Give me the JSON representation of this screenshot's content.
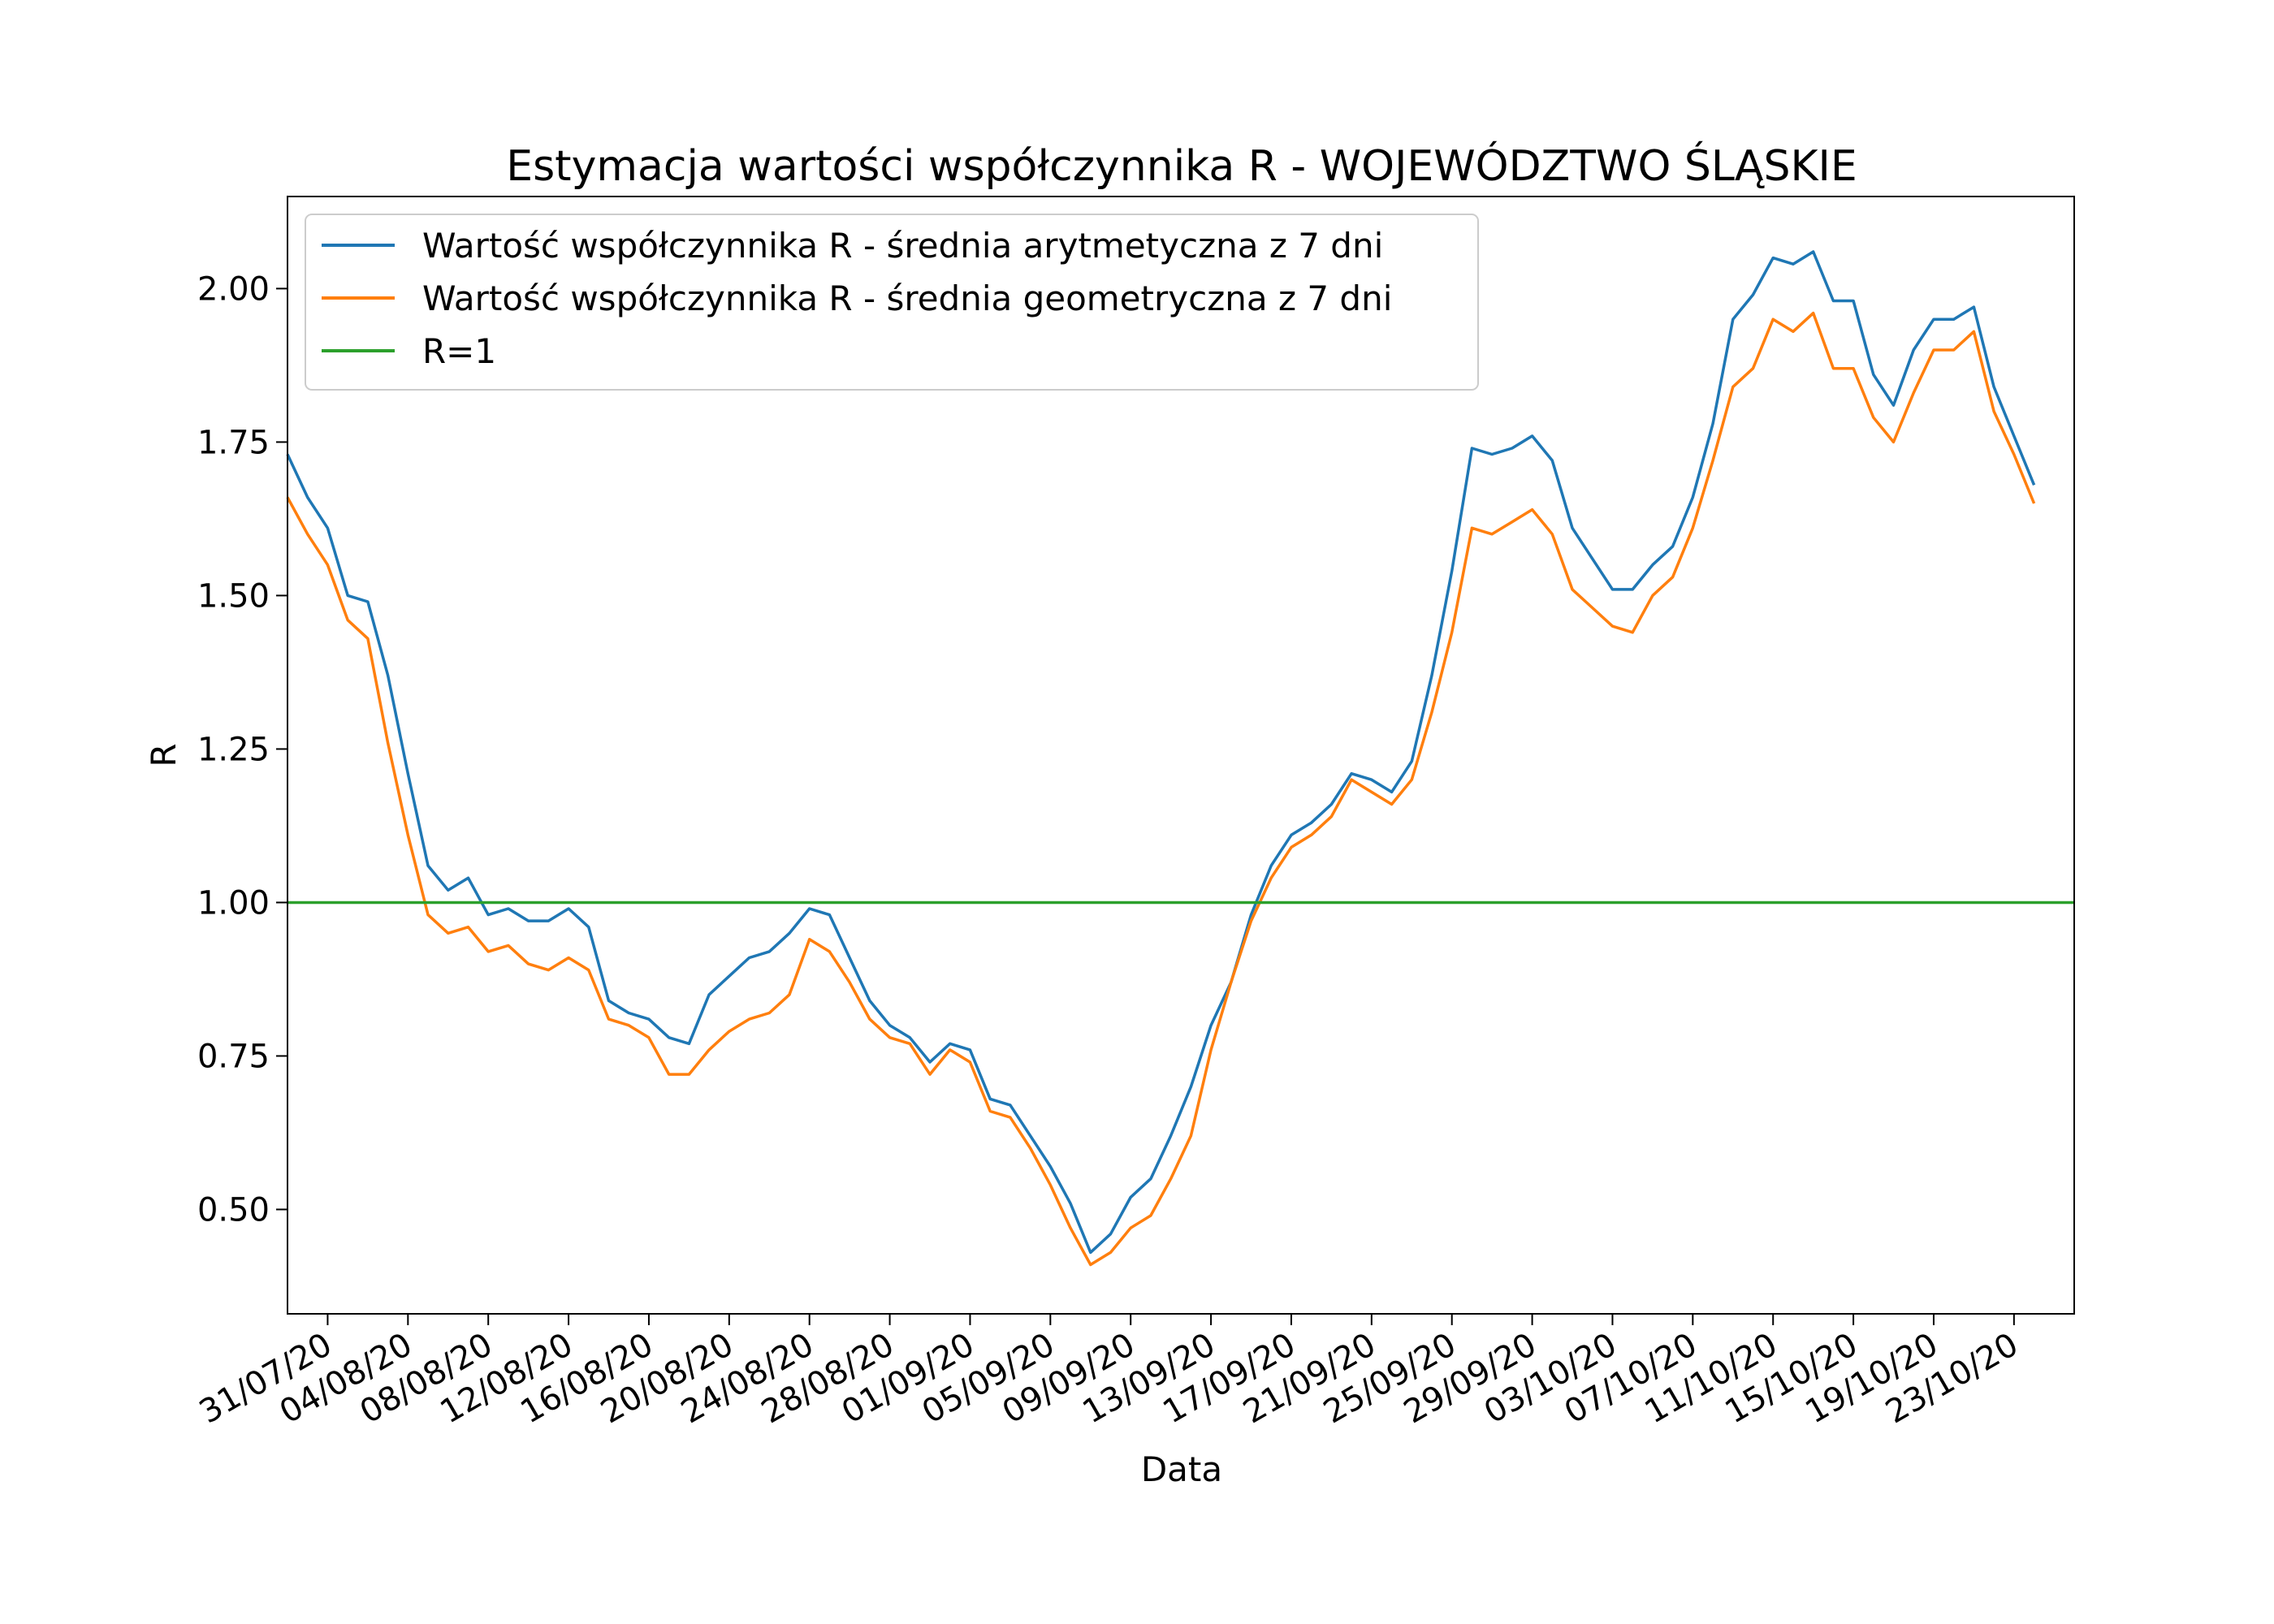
{
  "chart_data": {
    "type": "line",
    "title": "Estymacja wartości współczynnika R - WOJEWÓDZTWO ŚLĄSKIE",
    "xlabel": "Data",
    "ylabel": "R",
    "x_start": "2020-07-29",
    "x_end": "2020-10-26",
    "xlim": [
      "2020-07-29",
      "2020-10-26"
    ],
    "ylim": [
      0.33,
      2.15
    ],
    "x_ticks": [
      {
        "date": "2020-07-31",
        "label": "31/07/20"
      },
      {
        "date": "2020-08-04",
        "label": "04/08/20"
      },
      {
        "date": "2020-08-08",
        "label": "08/08/20"
      },
      {
        "date": "2020-08-12",
        "label": "12/08/20"
      },
      {
        "date": "2020-08-16",
        "label": "16/08/20"
      },
      {
        "date": "2020-08-20",
        "label": "20/08/20"
      },
      {
        "date": "2020-08-24",
        "label": "24/08/20"
      },
      {
        "date": "2020-08-28",
        "label": "28/08/20"
      },
      {
        "date": "2020-09-01",
        "label": "01/09/20"
      },
      {
        "date": "2020-09-05",
        "label": "05/09/20"
      },
      {
        "date": "2020-09-09",
        "label": "09/09/20"
      },
      {
        "date": "2020-09-13",
        "label": "13/09/20"
      },
      {
        "date": "2020-09-17",
        "label": "17/09/20"
      },
      {
        "date": "2020-09-21",
        "label": "21/09/20"
      },
      {
        "date": "2020-09-25",
        "label": "25/09/20"
      },
      {
        "date": "2020-09-29",
        "label": "29/09/20"
      },
      {
        "date": "2020-10-03",
        "label": "03/10/20"
      },
      {
        "date": "2020-10-07",
        "label": "07/10/20"
      },
      {
        "date": "2020-10-11",
        "label": "11/10/20"
      },
      {
        "date": "2020-10-15",
        "label": "15/10/20"
      },
      {
        "date": "2020-10-19",
        "label": "19/10/20"
      },
      {
        "date": "2020-10-23",
        "label": "23/10/20"
      }
    ],
    "y_ticks": [
      {
        "value": 0.5,
        "label": "0.50"
      },
      {
        "value": 0.75,
        "label": "0.75"
      },
      {
        "value": 1.0,
        "label": "1.00"
      },
      {
        "value": 1.25,
        "label": "1.25"
      },
      {
        "value": 1.5,
        "label": "1.50"
      },
      {
        "value": 1.75,
        "label": "1.75"
      },
      {
        "value": 2.0,
        "label": "2.00"
      }
    ],
    "grid": false,
    "legend_position": "top-left",
    "series": [
      {
        "name": "Wartość współczynnika R - średnia arytmetyczna z 7 dni",
        "color": "#1f77b4",
        "values": [
          1.73,
          1.66,
          1.61,
          1.5,
          1.49,
          1.37,
          1.21,
          1.06,
          1.02,
          1.04,
          0.98,
          0.99,
          0.97,
          0.97,
          0.99,
          0.96,
          0.84,
          0.82,
          0.81,
          0.78,
          0.77,
          0.85,
          0.88,
          0.91,
          0.92,
          0.95,
          0.99,
          0.98,
          0.91,
          0.84,
          0.8,
          0.78,
          0.74,
          0.77,
          0.76,
          0.68,
          0.67,
          0.62,
          0.57,
          0.51,
          0.43,
          0.46,
          0.52,
          0.55,
          0.62,
          0.7,
          0.8,
          0.87,
          0.98,
          1.06,
          1.11,
          1.13,
          1.16,
          1.21,
          1.2,
          1.18,
          1.23,
          1.37,
          1.54,
          1.74,
          1.73,
          1.74,
          1.76,
          1.72,
          1.61,
          1.56,
          1.51,
          1.51,
          1.55,
          1.58,
          1.66,
          1.78,
          1.95,
          1.99,
          2.05,
          2.04,
          2.06,
          1.98,
          1.98,
          1.86,
          1.81,
          1.9,
          1.95,
          1.95,
          1.97,
          1.84,
          1.76,
          1.68
        ]
      },
      {
        "name": "Wartość współczynnika R - średnia geometryczna z 7 dni",
        "color": "#ff7f0e",
        "values": [
          1.66,
          1.6,
          1.55,
          1.46,
          1.43,
          1.26,
          1.11,
          0.98,
          0.95,
          0.96,
          0.92,
          0.93,
          0.9,
          0.89,
          0.91,
          0.89,
          0.81,
          0.8,
          0.78,
          0.72,
          0.72,
          0.76,
          0.79,
          0.81,
          0.82,
          0.85,
          0.94,
          0.92,
          0.87,
          0.81,
          0.78,
          0.77,
          0.72,
          0.76,
          0.74,
          0.66,
          0.65,
          0.6,
          0.54,
          0.47,
          0.41,
          0.43,
          0.47,
          0.49,
          0.55,
          0.62,
          0.76,
          0.87,
          0.97,
          1.04,
          1.09,
          1.11,
          1.14,
          1.2,
          1.18,
          1.16,
          1.2,
          1.31,
          1.44,
          1.61,
          1.6,
          1.62,
          1.64,
          1.6,
          1.51,
          1.48,
          1.45,
          1.44,
          1.5,
          1.53,
          1.61,
          1.72,
          1.84,
          1.87,
          1.95,
          1.93,
          1.96,
          1.87,
          1.87,
          1.79,
          1.75,
          1.83,
          1.9,
          1.9,
          1.93,
          1.8,
          1.73,
          1.65
        ]
      },
      {
        "name": "R=1",
        "color": "#2ca02c",
        "constant": 1.0
      }
    ]
  }
}
